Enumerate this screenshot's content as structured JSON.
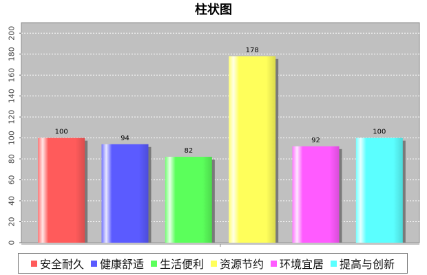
{
  "chart_data": {
    "type": "bar",
    "title": "柱状图",
    "categories": [
      "安全耐久",
      "健康舒适",
      "生活便利",
      "资源节约",
      "环境宜居",
      "提高与创新"
    ],
    "values": [
      100,
      94,
      82,
      178,
      92,
      100
    ],
    "colors": [
      "#ff5b5b",
      "#5b5bff",
      "#5bff5b",
      "#ffff5b",
      "#ff5bff",
      "#5bffff"
    ],
    "ylim": [
      0,
      210
    ],
    "yticks": [
      0,
      20,
      40,
      60,
      80,
      100,
      120,
      140,
      160,
      180,
      200
    ],
    "grid": true,
    "legend_position": "bottom",
    "plot_background": "#c0c0c0"
  }
}
